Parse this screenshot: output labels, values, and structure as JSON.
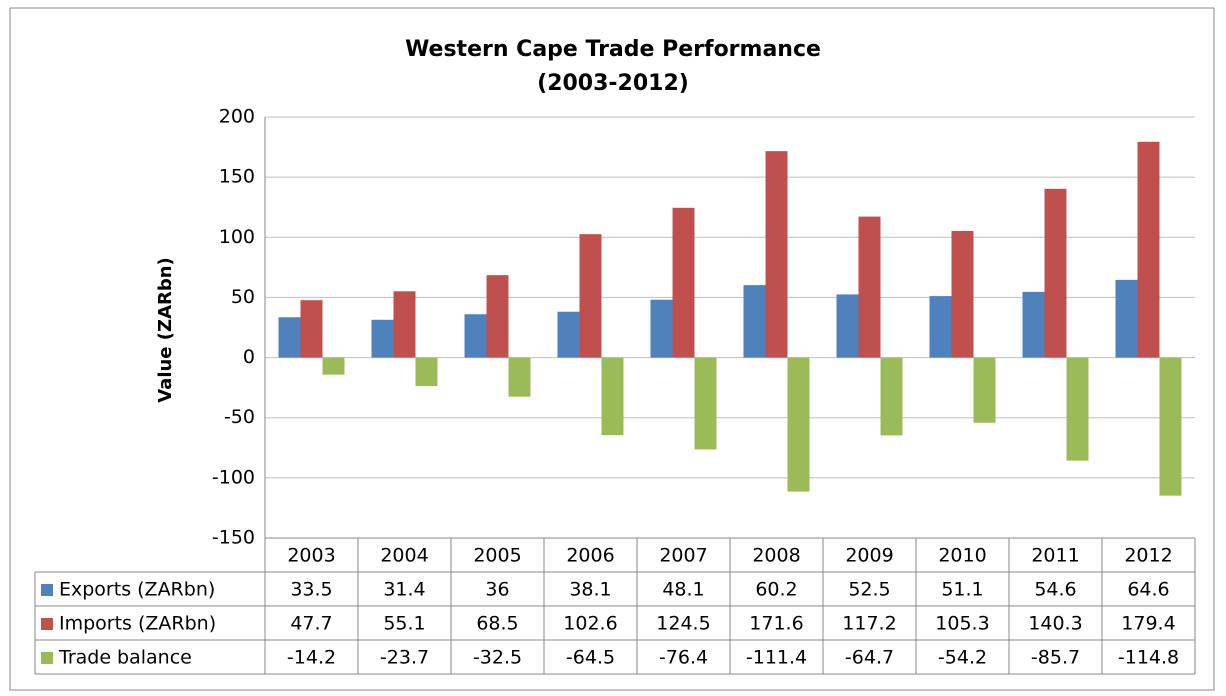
{
  "chart_data": {
    "type": "bar",
    "title": "Western Cape Trade Performance",
    "subtitle": "(2003-2012)",
    "y_label": "Value (ZARbn)",
    "categories": [
      "2003",
      "2004",
      "2005",
      "2006",
      "2007",
      "2008",
      "2009",
      "2010",
      "2011",
      "2012"
    ],
    "series": [
      {
        "name": "Exports (ZARbn)",
        "color": "#4f81bd",
        "values": [
          33.5,
          31.4,
          36,
          38.1,
          48.1,
          60.2,
          52.5,
          51.1,
          54.6,
          64.6
        ]
      },
      {
        "name": "Imports (ZARbn)",
        "color": "#c0504d",
        "values": [
          47.7,
          55.1,
          68.5,
          102.6,
          124.5,
          171.6,
          117.2,
          105.3,
          140.3,
          179.4
        ]
      },
      {
        "name": "Trade balance",
        "color": "#9bbb59",
        "values": [
          -14.2,
          -23.7,
          -32.5,
          -64.5,
          -76.4,
          -111.4,
          -64.7,
          -54.2,
          -85.7,
          -114.8
        ]
      }
    ],
    "ylim": [
      -150,
      200
    ],
    "yticks": [
      -150,
      -100,
      -50,
      0,
      50,
      100,
      150,
      200
    ],
    "grid": true,
    "data_table": true
  }
}
